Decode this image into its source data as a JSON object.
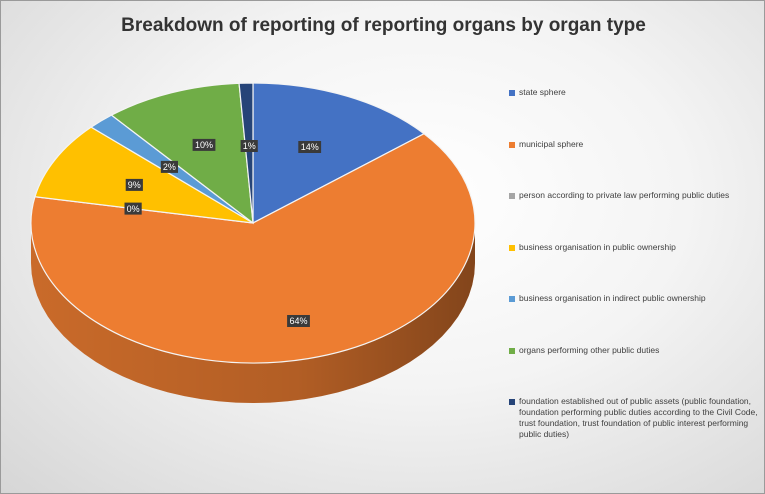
{
  "chart_data": {
    "type": "pie",
    "title": "Breakdown of reporting of reporting organs by organ type",
    "legend_position": "right",
    "slices": [
      {
        "name": "state sphere",
        "value": 14,
        "label": "14%",
        "color": "#4472C4"
      },
      {
        "name": "municipal sphere",
        "value": 64,
        "label": "64%",
        "color": "#ED7D31"
      },
      {
        "name": "person according to private law performing public duties",
        "value": 0,
        "label": "0%",
        "color": "#A5A5A5"
      },
      {
        "name": "business organisation in public ownership",
        "value": 9,
        "label": "9%",
        "color": "#FFC000"
      },
      {
        "name": "business organisation in indirect public ownership",
        "value": 2,
        "label": "2%",
        "color": "#5B9BD5"
      },
      {
        "name": "organs performing other public duties",
        "value": 10,
        "label": "10%",
        "color": "#70AD47"
      },
      {
        "name": "foundation established out of public assets (public foundation, foundation performing public duties according to the Civil Code, trust foundation, trust foundation of public interest performing public duties)",
        "value": 1,
        "label": "1%",
        "color": "#264478"
      }
    ]
  }
}
